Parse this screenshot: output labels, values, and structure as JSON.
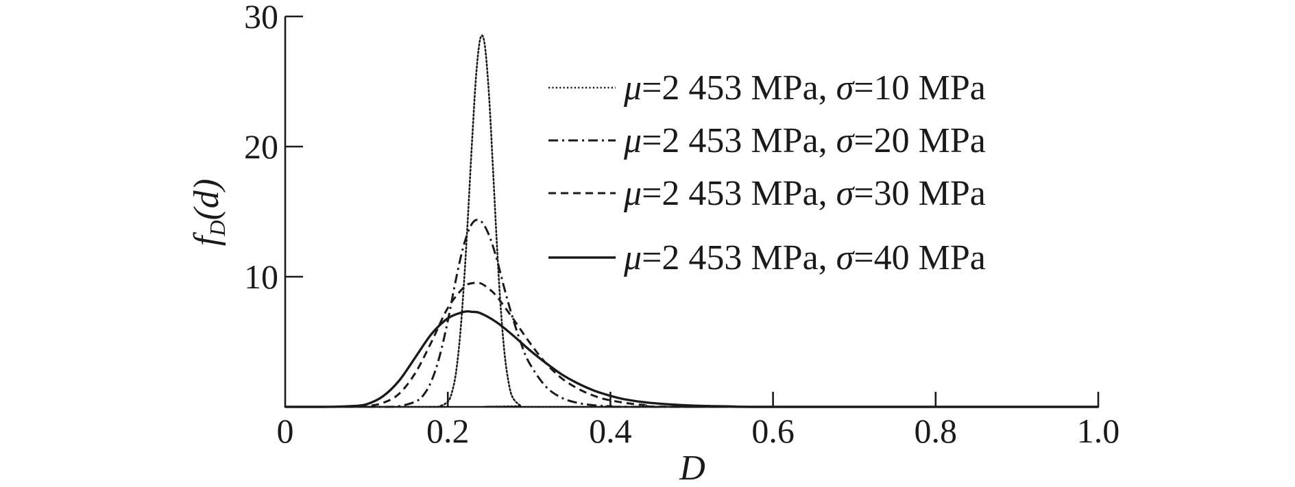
{
  "chart_data": {
    "type": "line",
    "xlabel": "D",
    "ylabel": "f_D(d)",
    "ylabel_main": "f",
    "ylabel_sub": "D",
    "ylabel_arg": "(d)",
    "xlim": [
      0,
      1.0
    ],
    "ylim": [
      0,
      30
    ],
    "xticks": [
      0,
      0.2,
      0.4,
      0.6,
      0.8,
      1.0
    ],
    "xtick_labels": [
      "0",
      "0.2",
      "0.4",
      "0.6",
      "0.8",
      "1.0"
    ],
    "yticks": [
      10,
      20,
      30
    ],
    "ytick_labels": [
      "10",
      "20",
      "30"
    ],
    "grid": false,
    "legend_position": "top-right",
    "series": [
      {
        "name": "μ=2 453 MPa, σ=10 MPa",
        "legend_mu": "μ",
        "legend_rest1": "=2 453 MPa, ",
        "legend_sigma": "σ",
        "legend_rest2": "=10 MPa",
        "style": "dotted",
        "x": [
          0.18,
          0.19,
          0.2,
          0.205,
          0.21,
          0.215,
          0.22,
          0.225,
          0.23,
          0.235,
          0.24,
          0.245,
          0.25,
          0.255,
          0.26,
          0.265,
          0.27,
          0.275,
          0.28,
          0.29,
          0.3
        ],
        "y": [
          0,
          0.05,
          0.4,
          1.1,
          2.6,
          5.4,
          9.6,
          14.9,
          20.6,
          25.6,
          28.3,
          28.0,
          24.6,
          19.0,
          12.9,
          7.7,
          4.0,
          1.8,
          0.7,
          0.08,
          0
        ]
      },
      {
        "name": "μ=2 453 MPa, σ=20 MPa",
        "legend_mu": "μ",
        "legend_rest1": "=2 453 MPa, ",
        "legend_sigma": "σ",
        "legend_rest2": "=20 MPa",
        "style": "dash-dot",
        "x": [
          0.12,
          0.14,
          0.16,
          0.17,
          0.18,
          0.19,
          0.2,
          0.21,
          0.22,
          0.23,
          0.24,
          0.25,
          0.26,
          0.27,
          0.28,
          0.29,
          0.3,
          0.32,
          0.34,
          0.36,
          0.38,
          0.4,
          0.45
        ],
        "y": [
          0,
          0.05,
          0.4,
          0.9,
          2.0,
          3.9,
          6.6,
          9.8,
          12.5,
          14.1,
          14.3,
          13.3,
          11.4,
          9.0,
          6.8,
          4.9,
          3.4,
          1.6,
          0.7,
          0.3,
          0.12,
          0.05,
          0
        ]
      },
      {
        "name": "μ=2 453 MPa, σ=30 MPa",
        "legend_mu": "μ",
        "legend_rest1": "=2 453 MPa, ",
        "legend_sigma": "σ",
        "legend_rest2": "=30 MPa",
        "style": "dashed",
        "x": [
          0.08,
          0.1,
          0.12,
          0.14,
          0.16,
          0.18,
          0.2,
          0.22,
          0.23,
          0.24,
          0.25,
          0.26,
          0.28,
          0.3,
          0.32,
          0.34,
          0.36,
          0.38,
          0.4,
          0.44,
          0.5
        ],
        "y": [
          0,
          0.05,
          0.3,
          1.0,
          2.6,
          5.0,
          7.6,
          9.2,
          9.5,
          9.5,
          9.1,
          8.5,
          6.8,
          5.0,
          3.4,
          2.2,
          1.4,
          0.85,
          0.5,
          0.15,
          0
        ]
      },
      {
        "name": "μ=2 453 MPa, σ=40 MPa",
        "legend_mu": "μ",
        "legend_rest1": "=2 453 MPa, ",
        "legend_sigma": "σ",
        "legend_rest2": "=40 MPa",
        "style": "solid",
        "x": [
          0.0,
          0.05,
          0.08,
          0.1,
          0.12,
          0.14,
          0.16,
          0.18,
          0.2,
          0.22,
          0.23,
          0.24,
          0.26,
          0.28,
          0.3,
          0.32,
          0.34,
          0.36,
          0.38,
          0.4,
          0.42,
          0.45,
          0.5,
          0.55,
          0.6
        ],
        "y": [
          0,
          0,
          0.05,
          0.2,
          0.8,
          2.0,
          3.8,
          5.6,
          6.8,
          7.3,
          7.3,
          7.2,
          6.5,
          5.5,
          4.4,
          3.4,
          2.5,
          1.8,
          1.25,
          0.85,
          0.55,
          0.3,
          0.1,
          0.03,
          0
        ]
      }
    ]
  }
}
